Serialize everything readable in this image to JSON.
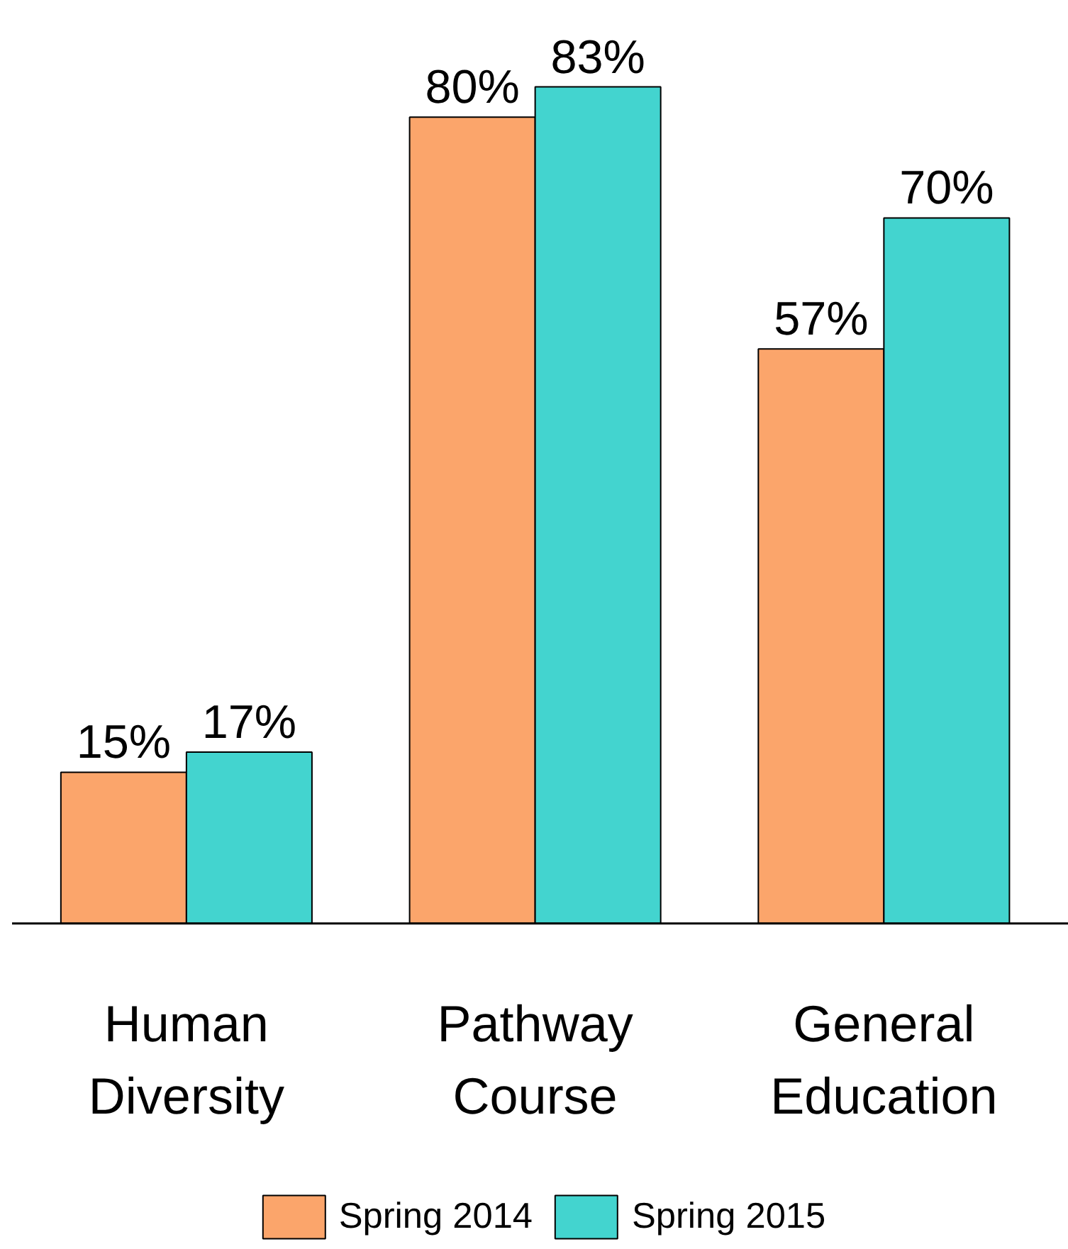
{
  "chart_data": {
    "type": "bar",
    "categories": [
      "Human\nDiversity",
      "Pathway\nCourse",
      "General\nEducation"
    ],
    "legend": "bottom",
    "grid": false,
    "series": [
      {
        "name": "Spring 2014",
        "color": "#fba56b",
        "values": [
          15,
          80,
          57
        ],
        "value_labels": [
          "15%",
          "80%",
          "57%"
        ]
      },
      {
        "name": "Spring 2015",
        "color": "#43d4cf",
        "values": [
          17,
          83,
          70
        ],
        "value_labels": [
          "17%",
          "83%",
          "70%"
        ]
      }
    ]
  }
}
